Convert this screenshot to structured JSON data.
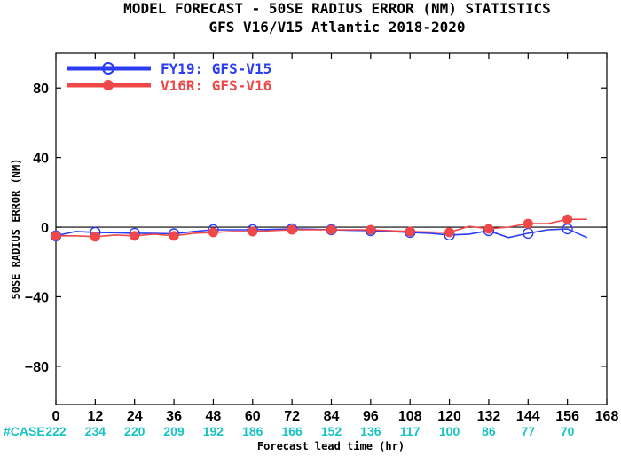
{
  "chart_data": {
    "type": "line",
    "title": "MODEL FORECAST - 50SE RADIUS ERROR (NM) STATISTICS",
    "subtitle": "GFS V16/V15 Atlantic 2018-2020",
    "xlabel": "Forecast lead time (hr)",
    "ylabel": "50SE RADIUS ERROR (NM)",
    "xlim": [
      0,
      168
    ],
    "ylim": [
      -102,
      100
    ],
    "xticks": [
      "0",
      "12",
      "24",
      "36",
      "48",
      "60",
      "72",
      "84",
      "96",
      "108",
      "120",
      "132",
      "144",
      "156",
      "168"
    ],
    "yticks": [
      "80",
      "40",
      "0",
      "-40",
      "-80"
    ],
    "grid": false,
    "legend_position": "top-left",
    "zero_line": true,
    "case_prefix": "#CASE",
    "case_counts": [
      "222",
      "234",
      "220",
      "209",
      "192",
      "186",
      "166",
      "152",
      "136",
      "117",
      "100",
      "86",
      "77",
      "70"
    ],
    "series": [
      {
        "name": "FY19: GFS-V15",
        "color": "#2b3cf5",
        "marker": "open-circle",
        "x": [
          0,
          6,
          12,
          18,
          24,
          30,
          36,
          42,
          48,
          54,
          60,
          66,
          72,
          78,
          84,
          90,
          96,
          102,
          108,
          114,
          120,
          126,
          132,
          138,
          144,
          150,
          156,
          162
        ],
        "y": [
          -5,
          -2.5,
          -3,
          -3.2,
          -3.5,
          -3.6,
          -3.8,
          -2.5,
          -1.5,
          -1.5,
          -1.5,
          -1.3,
          -1,
          -1.2,
          -1.5,
          -1.8,
          -2,
          -2.5,
          -3,
          -3.5,
          -4.5,
          -4,
          -2,
          -6,
          -3.5,
          -1.5,
          -1,
          -6
        ],
        "markers_at": [
          0,
          12,
          24,
          36,
          48,
          60,
          72,
          84,
          96,
          108,
          120,
          132,
          144,
          156
        ]
      },
      {
        "name": "V16R: GFS-V16",
        "color": "#f04848",
        "marker": "filled-circle",
        "x": [
          0,
          6,
          12,
          18,
          24,
          30,
          36,
          42,
          48,
          54,
          60,
          66,
          72,
          78,
          84,
          90,
          96,
          102,
          108,
          114,
          120,
          126,
          132,
          138,
          144,
          150,
          156,
          162
        ],
        "y": [
          -5,
          -5,
          -5.5,
          -4.5,
          -5,
          -4,
          -5,
          -3.5,
          -3,
          -2.5,
          -2.5,
          -2,
          -1.5,
          -1.5,
          -1.5,
          -1.5,
          -1.5,
          -2,
          -2.5,
          -2.8,
          -3,
          0.5,
          -1,
          0,
          2,
          2,
          4.5,
          4.5
        ],
        "markers_at": [
          0,
          12,
          24,
          36,
          48,
          60,
          72,
          84,
          96,
          108,
          120,
          132,
          144,
          156
        ]
      }
    ]
  }
}
